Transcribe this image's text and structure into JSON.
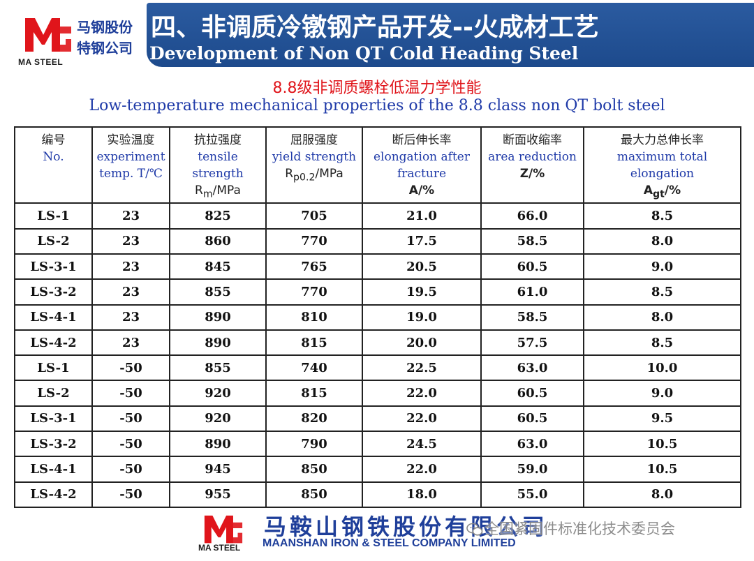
{
  "header": {
    "logo_cn_line1": "马钢股份",
    "logo_cn_line2": "特钢公司",
    "logo_en": "MA STEEL",
    "title_cn": "四、非调质冷镦钢产品开发--火成材工艺",
    "title_en": "Development of Non QT Cold Heading Steel",
    "brand_colors": {
      "banner": "#2b5ba0",
      "logo_red": "#e0151b",
      "logo_blue": "#1f3f9a"
    }
  },
  "subtitle": {
    "cn": "8.8级非调质螺栓低温力学性能",
    "en": "Low-temperature mechanical properties of the 8.8 class  non QT bolt steel"
  },
  "table": {
    "columns": [
      {
        "cn": "编号",
        "en": "No.",
        "unit": ""
      },
      {
        "cn": "实验温度",
        "en": "experiment temp. T/℃",
        "unit": ""
      },
      {
        "cn": "抗拉强度",
        "en": "tensile strength",
        "sym": "R",
        "sub": "m",
        "unit": "/MPa"
      },
      {
        "cn": "屈服强度",
        "en": "yield strength",
        "sym": "R",
        "sub": "p0.2",
        "unit": "/MPa"
      },
      {
        "cn": "断后伸长率",
        "en": "elongation after fracture",
        "sym": "A/%",
        "unit": ""
      },
      {
        "cn": "断面收缩率",
        "en": "area reduction",
        "sym": "Z/%",
        "unit": ""
      },
      {
        "cn": "最大力总伸长率",
        "en": "maximum total elongation",
        "sym": "A",
        "sub": "gt",
        "unit": "/%"
      }
    ],
    "rows": [
      [
        "LS-1",
        "23",
        "825",
        "705",
        "21.0",
        "66.0",
        "8.5"
      ],
      [
        "LS-2",
        "23",
        "860",
        "770",
        "17.5",
        "58.5",
        "8.0"
      ],
      [
        "LS-3-1",
        "23",
        "845",
        "765",
        "20.5",
        "60.5",
        "9.0"
      ],
      [
        "LS-3-2",
        "23",
        "855",
        "770",
        "19.5",
        "61.0",
        "8.5"
      ],
      [
        "LS-4-1",
        "23",
        "890",
        "810",
        "19.0",
        "58.5",
        "8.0"
      ],
      [
        "LS-4-2",
        "23",
        "890",
        "815",
        "20.0",
        "57.5",
        "8.5"
      ],
      [
        "LS-1",
        "-50",
        "855",
        "740",
        "22.5",
        "63.0",
        "10.0"
      ],
      [
        "LS-2",
        "-50",
        "920",
        "815",
        "22.0",
        "60.5",
        "9.0"
      ],
      [
        "LS-3-1",
        "-50",
        "920",
        "820",
        "22.0",
        "60.5",
        "9.5"
      ],
      [
        "LS-3-2",
        "-50",
        "890",
        "790",
        "24.5",
        "63.0",
        "10.5"
      ],
      [
        "LS-4-1",
        "-50",
        "945",
        "850",
        "22.0",
        "59.0",
        "10.5"
      ],
      [
        "LS-4-2",
        "-50",
        "955",
        "850",
        "18.0",
        "55.0",
        "8.0"
      ]
    ],
    "cold_temp_color": "#e0151b"
  },
  "footer": {
    "logo_en": "MA STEEL",
    "company_cn": "马鞍山钢铁股份有限公司",
    "company_en": "MAANSHAN IRON & STEEL COMPANY LIMITED",
    "watermark": "全国紧固件标准化技术委员会",
    "watermark_icon": "wechat-icon"
  }
}
